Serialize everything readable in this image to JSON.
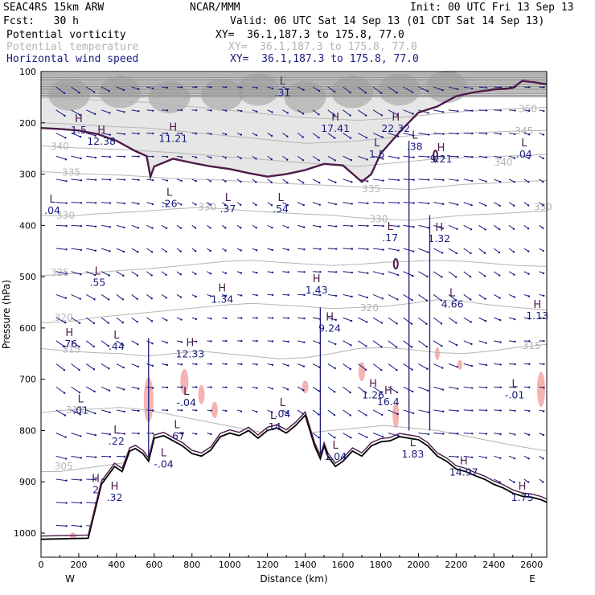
{
  "header": {
    "model": "SEAC4RS 15km ARW",
    "forecast": "Fcst:   30 h",
    "source": "NCAR/MMM",
    "init": "Init: 00 UTC Fri 13 Sep 13",
    "valid": "Valid: 06 UTC Sat 14 Sep 13 (01 CDT Sat 14 Sep 13)",
    "fields": [
      {
        "label": "Potential vorticity",
        "xy": "XY=  36.1,187.3 to 175.8, 77.0",
        "color": "#000000"
      },
      {
        "label": "Potential temperature",
        "xy": "XY=  36.1,187.3 to 175.8, 77.0",
        "color": "#b5b5b5"
      },
      {
        "label": "Horizontal wind speed",
        "xy": "XY=  36.1,187.3 to 175.8, 77.0",
        "color": "#1a1a80"
      }
    ]
  },
  "chart_data": {
    "type": "line",
    "xlabel": "Distance (km)",
    "ylabel": "Pressure (hPa)",
    "xlim": [
      0,
      2680
    ],
    "ylim": [
      1050,
      100
    ],
    "x_ticks": [
      0,
      200,
      400,
      600,
      800,
      1000,
      1200,
      1400,
      1600,
      1800,
      2000,
      2200,
      2400,
      2600
    ],
    "y_ticks": [
      100,
      200,
      300,
      400,
      500,
      600,
      700,
      800,
      900,
      1000
    ],
    "end_labels": {
      "left": "W",
      "right": "E"
    },
    "colors": {
      "pv": "#4d1a48",
      "theta": "#b5b5b5",
      "wind": "#1a1a80",
      "terrain": "#000000",
      "neg_shade": "#f4b3b3"
    },
    "terrain_surface": {
      "x": [
        0,
        250,
        290,
        320,
        360,
        390,
        430,
        470,
        500,
        540,
        570,
        600,
        650,
        700,
        750,
        800,
        850,
        900,
        950,
        1000,
        1050,
        1100,
        1150,
        1200,
        1250,
        1300,
        1350,
        1400,
        1450,
        1480,
        1500,
        1520,
        1560,
        1600,
        1650,
        1700,
        1750,
        1800,
        1850,
        1900,
        1950,
        2000,
        2050,
        2100,
        2150,
        2200,
        2250,
        2300,
        2350,
        2400,
        2450,
        2500,
        2550,
        2600,
        2650,
        2680
      ],
      "p": [
        1012,
        1010,
        950,
        905,
        885,
        870,
        880,
        840,
        835,
        845,
        860,
        815,
        810,
        820,
        830,
        845,
        850,
        838,
        812,
        805,
        810,
        800,
        815,
        800,
        795,
        805,
        790,
        770,
        830,
        855,
        830,
        850,
        870,
        860,
        840,
        850,
        830,
        822,
        820,
        812,
        815,
        818,
        830,
        850,
        860,
        875,
        880,
        888,
        895,
        905,
        912,
        922,
        928,
        930,
        935,
        940
      ]
    },
    "pv_2pvu_isoline": {
      "x": [
        0,
        100,
        200,
        300,
        400,
        500,
        560,
        580,
        600,
        700,
        800,
        900,
        1000,
        1100,
        1200,
        1300,
        1400,
        1500,
        1600,
        1700,
        1750,
        1800,
        1900,
        2000,
        2100,
        2200,
        2300,
        2400,
        2500,
        2550,
        2600,
        2650,
        2680
      ],
      "p": [
        210,
        212,
        215,
        222,
        235,
        255,
        265,
        305,
        285,
        270,
        278,
        285,
        290,
        298,
        305,
        300,
        292,
        280,
        283,
        315,
        300,
        260,
        218,
        180,
        168,
        148,
        140,
        135,
        132,
        118,
        120,
        123,
        125
      ]
    },
    "theta_isentropes": [
      {
        "label": "305",
        "p": [
          880,
          880,
          875,
          870,
          865,
          860,
          855,
          850
        ],
        "x": [
          0,
          100,
          200,
          300,
          400,
          500,
          600,
          700
        ]
      },
      {
        "label": "310",
        "p": [
          765,
          760,
          758,
          755,
          760,
          770,
          780,
          790,
          800,
          810,
          805,
          800,
          795,
          790,
          795,
          800,
          810,
          820,
          830,
          840
        ],
        "x": [
          0,
          140,
          280,
          420,
          560,
          700,
          840,
          980,
          1120,
          1260,
          1400,
          1540,
          1680,
          1820,
          1960,
          2100,
          2240,
          2380,
          2520,
          2680
        ]
      },
      {
        "label": "315",
        "p": [
          640,
          645,
          648,
          650,
          655,
          650,
          645,
          650,
          655,
          660,
          658,
          650,
          640,
          638,
          642,
          648,
          650,
          645,
          638,
          632
        ],
        "x": [
          0,
          140,
          280,
          420,
          560,
          700,
          840,
          980,
          1120,
          1260,
          1400,
          1540,
          1680,
          1820,
          1960,
          2100,
          2240,
          2380,
          2520,
          2680
        ]
      },
      {
        "label": "320",
        "p": [
          590,
          588,
          580,
          575,
          570,
          565,
          560,
          555,
          552,
          555,
          558,
          562,
          560,
          558,
          552,
          545,
          548,
          555,
          560,
          565
        ],
        "x": [
          0,
          140,
          280,
          420,
          560,
          700,
          840,
          980,
          1120,
          1260,
          1400,
          1540,
          1680,
          1820,
          1960,
          2100,
          2240,
          2380,
          2520,
          2680
        ]
      },
      {
        "label": "325",
        "p": [
          498,
          495,
          492,
          488,
          485,
          480,
          475,
          470,
          468,
          472,
          475,
          478,
          476,
          472,
          470,
          468,
          470,
          474,
          478,
          480
        ],
        "x": [
          0,
          140,
          280,
          420,
          560,
          700,
          840,
          980,
          1120,
          1260,
          1400,
          1540,
          1680,
          1820,
          1960,
          2100,
          2240,
          2380,
          2520,
          2680
        ]
      },
      {
        "label": "330",
        "p": [
          380,
          382,
          378,
          375,
          372,
          368,
          365,
          368,
          372,
          375,
          378,
          380,
          385,
          388,
          390,
          385,
          380,
          378,
          375,
          372
        ],
        "x": [
          0,
          140,
          280,
          420,
          560,
          700,
          840,
          980,
          1120,
          1260,
          1400,
          1540,
          1680,
          1820,
          1960,
          2100,
          2240,
          2380,
          2520,
          2680
        ]
      },
      {
        "label": "335",
        "p": [
          295,
          298,
          300,
          302,
          305,
          308,
          310,
          312,
          315,
          318,
          320,
          322,
          325,
          328,
          330,
          325,
          320,
          318,
          315,
          312
        ],
        "x": [
          0,
          140,
          280,
          420,
          560,
          700,
          840,
          980,
          1120,
          1260,
          1400,
          1540,
          1680,
          1820,
          1960,
          2100,
          2240,
          2380,
          2520,
          2680
        ]
      },
      {
        "label": "340",
        "p": [
          245,
          248,
          250,
          252,
          255,
          258,
          262,
          266,
          270,
          274,
          278,
          282,
          285,
          280,
          275,
          270,
          268,
          266,
          264,
          262
        ],
        "x": [
          0,
          140,
          280,
          420,
          560,
          700,
          840,
          980,
          1120,
          1260,
          1400,
          1540,
          1680,
          1820,
          1960,
          2100,
          2240,
          2380,
          2520,
          2680
        ]
      },
      {
        "label": "345",
        "p": [
          200,
          202,
          205,
          208,
          210,
          215,
          220,
          225,
          230,
          235,
          240,
          238,
          235,
          230,
          225,
          222,
          220,
          218,
          216,
          215
        ],
        "x": [
          0,
          140,
          280,
          420,
          560,
          700,
          840,
          980,
          1120,
          1260,
          1400,
          1540,
          1680,
          1820,
          1960,
          2100,
          2240,
          2380,
          2520,
          2680
        ]
      },
      {
        "label": "350",
        "p": [
          150,
          152,
          155,
          158,
          160,
          165,
          170,
          175,
          180,
          185,
          190,
          192,
          195,
          192,
          188,
          182,
          178,
          175,
          172,
          170
        ],
        "x": [
          0,
          140,
          280,
          420,
          560,
          700,
          840,
          980,
          1120,
          1260,
          1400,
          1540,
          1680,
          1820,
          1960,
          2100,
          2240,
          2380,
          2520,
          2680
        ]
      }
    ],
    "theta_label_positions": [
      {
        "label": "305",
        "x": 120,
        "p": 870
      },
      {
        "label": "310",
        "x": 180,
        "p": 760
      },
      {
        "label": "315",
        "x": 160,
        "p": 642
      },
      {
        "label": "320",
        "x": 120,
        "p": 580
      },
      {
        "label": "325",
        "x": 100,
        "p": 492
      },
      {
        "label": "330",
        "x": 130,
        "p": 381
      },
      {
        "label": "330",
        "x": 880,
        "p": 364
      },
      {
        "label": "330",
        "x": 1790,
        "p": 388
      },
      {
        "label": "330",
        "x": 2660,
        "p": 364
      },
      {
        "label": "335",
        "x": 160,
        "p": 297
      },
      {
        "label": "335",
        "x": 1750,
        "p": 329
      },
      {
        "label": "340",
        "x": 100,
        "p": 246
      },
      {
        "label": "340",
        "x": 2450,
        "p": 277
      },
      {
        "label": "345",
        "x": 2560,
        "p": 216
      },
      {
        "label": "350",
        "x": 2580,
        "p": 173
      },
      {
        "label": "320",
        "x": 1740,
        "p": 561
      },
      {
        "label": "315",
        "x": 2600,
        "p": 635
      }
    ],
    "extrema": [
      {
        "type": "L",
        "value": ".04",
        "x": 60,
        "p": 365
      },
      {
        "type": "H",
        "value": "1.5",
        "x": 200,
        "p": 208
      },
      {
        "type": "H",
        "value": "12.38",
        "x": 320,
        "p": 230
      },
      {
        "type": "H",
        "value": "11.21",
        "x": 700,
        "p": 225
      },
      {
        "type": "L",
        "value": ".31",
        "x": 1280,
        "p": 135
      },
      {
        "type": "H",
        "value": "17.41",
        "x": 1560,
        "p": 205
      },
      {
        "type": "H",
        "value": "22.32",
        "x": 1880,
        "p": 205
      },
      {
        "type": "L",
        "value": ".38",
        "x": 1980,
        "p": 240
      },
      {
        "type": "H",
        "value": "9.21",
        "x": 2120,
        "p": 265
      },
      {
        "type": "L",
        "value": "1.5",
        "x": 1780,
        "p": 255
      },
      {
        "type": "L",
        "value": ".04",
        "x": 2560,
        "p": 255
      },
      {
        "type": "L",
        "value": ".26",
        "x": 680,
        "p": 352
      },
      {
        "type": "L",
        "value": ".37",
        "x": 990,
        "p": 362
      },
      {
        "type": "L",
        "value": ".54",
        "x": 1270,
        "p": 362
      },
      {
        "type": "L",
        "value": ".17",
        "x": 1850,
        "p": 418
      },
      {
        "type": "H",
        "value": "1.32",
        "x": 2110,
        "p": 420
      },
      {
        "type": "L",
        "value": ".55",
        "x": 300,
        "p": 505
      },
      {
        "type": "H",
        "value": "1.43",
        "x": 1460,
        "p": 520
      },
      {
        "type": "H",
        "value": "1.34",
        "x": 960,
        "p": 538
      },
      {
        "type": "L",
        "value": "4.66",
        "x": 2180,
        "p": 548
      },
      {
        "type": "H",
        "value": "9.24",
        "x": 1530,
        "p": 595
      },
      {
        "type": "H",
        "value": "1.13",
        "x": 2630,
        "p": 570
      },
      {
        "type": "H",
        "value": ".76",
        "x": 150,
        "p": 625
      },
      {
        "type": "L",
        "value": ".44",
        "x": 400,
        "p": 630
      },
      {
        "type": "H",
        "value": "12.33",
        "x": 790,
        "p": 645
      },
      {
        "type": "L",
        "value": ".01",
        "x": 210,
        "p": 755
      },
      {
        "type": "L",
        "value": "-.04",
        "x": 770,
        "p": 740
      },
      {
        "type": "H",
        "value": "1.26",
        "x": 1760,
        "p": 725
      },
      {
        "type": "H",
        "value": "16.4",
        "x": 1840,
        "p": 738
      },
      {
        "type": "L",
        "value": "-.01",
        "x": 2510,
        "p": 725
      },
      {
        "type": "L",
        "value": ".04",
        "x": 1280,
        "p": 762
      },
      {
        "type": "L",
        "value": ".14",
        "x": 1230,
        "p": 787
      },
      {
        "type": "L",
        "value": ".22",
        "x": 400,
        "p": 815
      },
      {
        "type": "L",
        "value": ".67",
        "x": 720,
        "p": 805
      },
      {
        "type": "L",
        "value": "-.04",
        "x": 650,
        "p": 860
      },
      {
        "type": "L",
        "value": "1.04",
        "x": 1560,
        "p": 845
      },
      {
        "type": "L",
        "value": "1.83",
        "x": 1970,
        "p": 840
      },
      {
        "type": "H",
        "value": "14.97",
        "x": 2240,
        "p": 875
      },
      {
        "type": "H",
        "value": "2",
        "x": 290,
        "p": 910
      },
      {
        "type": "H",
        "value": ".32",
        "x": 390,
        "p": 925
      },
      {
        "type": "H",
        "value": "1.75",
        "x": 2550,
        "p": 925
      }
    ],
    "grid": false
  }
}
